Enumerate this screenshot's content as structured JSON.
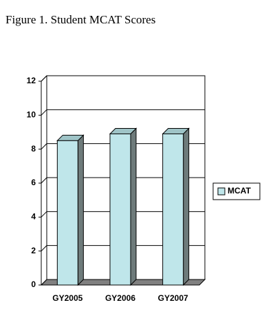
{
  "chart_data": {
    "type": "bar",
    "title": "Figure 1. Student MCAT Scores",
    "categories": [
      "GY2005",
      "GY2006",
      "GY2007"
    ],
    "series": [
      {
        "name": "MCAT",
        "color": "#bfe6ea",
        "values": [
          8.5,
          8.9,
          8.9
        ]
      }
    ],
    "ylim": [
      0,
      12
    ],
    "yticks": [
      0,
      2,
      4,
      6,
      8,
      10,
      12
    ],
    "grid": true
  }
}
